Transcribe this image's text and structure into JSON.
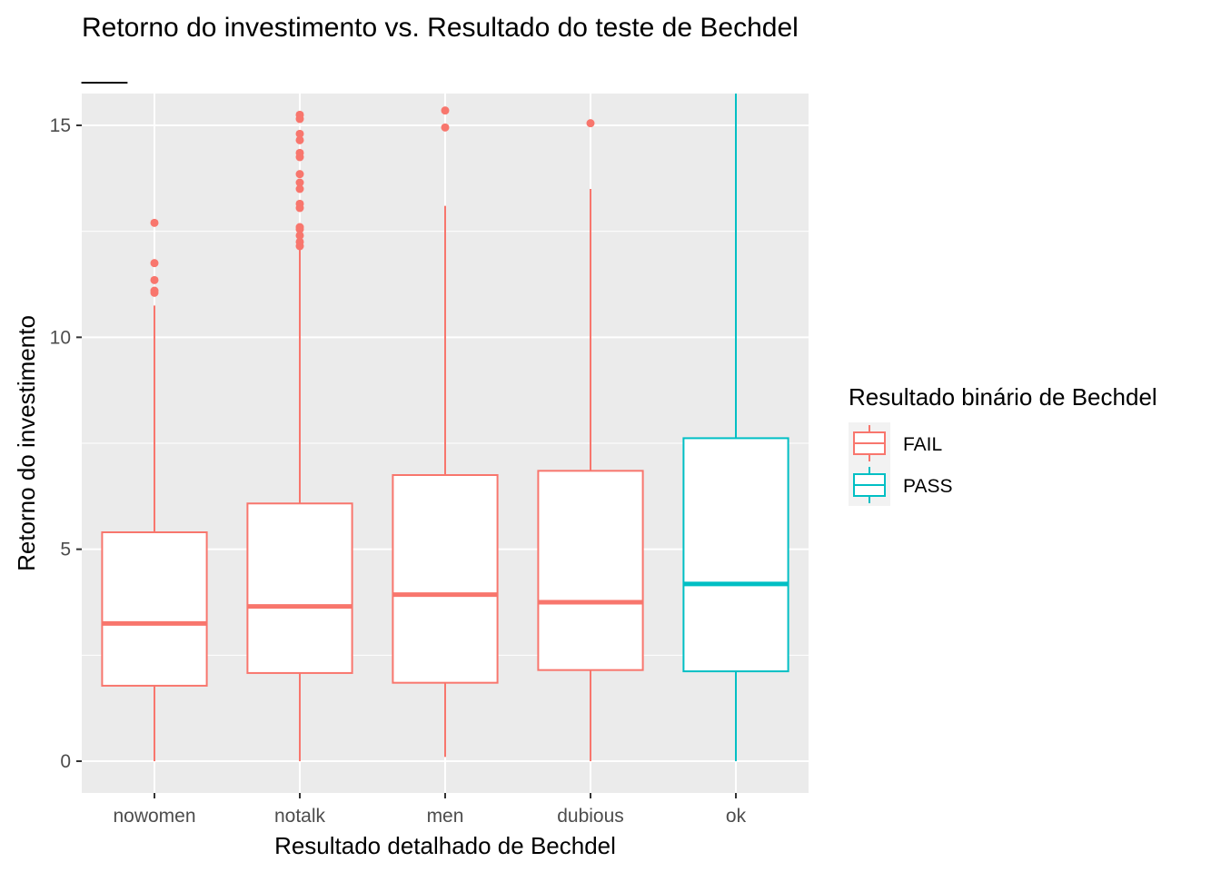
{
  "chart_data": {
    "type": "box",
    "title": "Retorno do investimento vs. Resultado do teste de Bechdel",
    "subtitle": "___",
    "xlabel": "Resultado detalhado de Bechdel",
    "ylabel": "Retorno do investimento",
    "ylim": [
      -0.75,
      15.75
    ],
    "y_ticks": [
      0,
      5,
      10,
      15
    ],
    "y_tick_labels": [
      "0",
      "5",
      "10",
      "15"
    ],
    "grid": true,
    "legend": {
      "title": "Resultado binário de Bechdel",
      "placement": "right",
      "entries": [
        {
          "label": "FAIL",
          "color": "#F8766D"
        },
        {
          "label": "PASS",
          "color": "#00BFC4"
        }
      ]
    },
    "categories": [
      "nowomen",
      "notalk",
      "men",
      "dubious",
      "ok"
    ],
    "boxes": [
      {
        "category": "nowomen",
        "group": "FAIL",
        "whisker_low": 0.0,
        "q1": 1.78,
        "median": 3.25,
        "q3": 5.4,
        "whisker_high": 10.75,
        "outliers": [
          11.05,
          11.1,
          11.35,
          11.75,
          12.7
        ]
      },
      {
        "category": "notalk",
        "group": "FAIL",
        "whisker_low": 0.0,
        "q1": 2.08,
        "median": 3.65,
        "q3": 6.08,
        "whisker_high": 12.1,
        "outliers": [
          12.15,
          12.25,
          12.4,
          12.55,
          12.6,
          13.05,
          13.15,
          13.5,
          13.65,
          13.85,
          14.25,
          14.35,
          14.65,
          14.8,
          15.15,
          15.25
        ]
      },
      {
        "category": "men",
        "group": "FAIL",
        "whisker_low": 0.1,
        "q1": 1.85,
        "median": 3.93,
        "q3": 6.75,
        "whisker_high": 13.1,
        "outliers": [
          14.95,
          15.35
        ]
      },
      {
        "category": "dubious",
        "group": "FAIL",
        "whisker_low": 0.0,
        "q1": 2.15,
        "median": 3.75,
        "q3": 6.85,
        "whisker_high": 13.5,
        "outliers": [
          15.05
        ]
      },
      {
        "category": "ok",
        "group": "PASS",
        "whisker_low": 0.0,
        "q1": 2.12,
        "median": 4.18,
        "q3": 7.62,
        "whisker_high": 15.75,
        "outliers": []
      }
    ],
    "colors": {
      "panel_background": "#EBEBEB",
      "grid_major": "#FFFFFF",
      "tick_text": "#4D4D4D",
      "legend_key_background": "#F2F2F2"
    }
  }
}
